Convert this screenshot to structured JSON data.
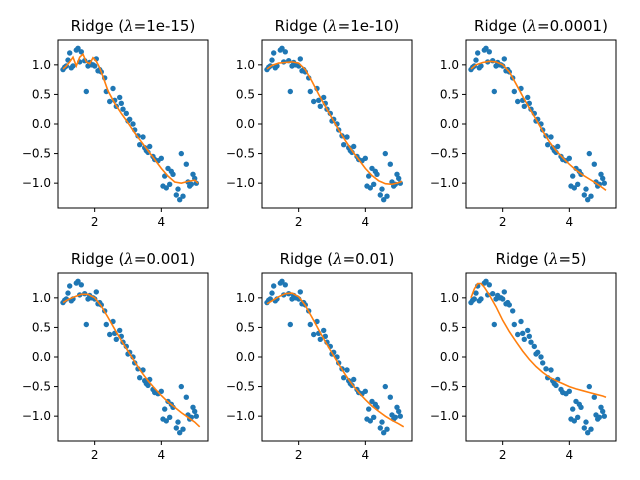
{
  "chart_data": [
    {
      "type": "scatter",
      "title_prefix": "Ridge (",
      "lambda_symbol": "λ",
      "title_value": "=1e-15)",
      "xlim": [
        0.9,
        5.4
      ],
      "ylim": [
        -1.42,
        1.42
      ],
      "x_ticks": [
        2,
        4
      ],
      "y_ticks": [
        1.0,
        0.5,
        0.0,
        -0.5,
        -1.0
      ],
      "x_tick_labels": [
        "2",
        "4"
      ],
      "y_tick_labels": [
        "1.0",
        "0.5",
        "0.0",
        "−0.5",
        "−1.0"
      ],
      "grid": false,
      "fit": {
        "x": [
          1.05,
          1.15,
          1.25,
          1.35,
          1.45,
          1.55,
          1.65,
          1.75,
          1.85,
          1.95,
          2.05,
          2.15,
          2.25,
          2.4,
          2.6,
          2.8,
          3.0,
          3.2,
          3.4,
          3.6,
          3.8,
          4.0,
          4.2,
          4.4,
          4.6,
          4.8,
          5.0,
          5.1
        ],
        "y": [
          0.93,
          0.98,
          1.05,
          1.13,
          0.98,
          1.13,
          1.18,
          1.05,
          1.02,
          1.12,
          1.06,
          0.95,
          0.8,
          0.56,
          0.35,
          0.18,
          0.02,
          -0.15,
          -0.3,
          -0.45,
          -0.6,
          -0.75,
          -0.88,
          -0.98,
          -1.0,
          -0.97,
          -0.95,
          -1.0
        ]
      }
    },
    {
      "type": "scatter",
      "title_prefix": "Ridge (",
      "lambda_symbol": "λ",
      "title_value": "=1e-10)",
      "xlim": [
        0.9,
        5.4
      ],
      "ylim": [
        -1.42,
        1.42
      ],
      "x_ticks": [
        2,
        4
      ],
      "y_ticks": [
        1.0,
        0.5,
        0.0,
        -0.5,
        -1.0
      ],
      "x_tick_labels": [
        "2",
        "4"
      ],
      "y_tick_labels": [
        "1.0",
        "0.5",
        "0.0",
        "−0.5",
        "−1.0"
      ],
      "grid": false,
      "fit": {
        "x": [
          1.05,
          1.2,
          1.4,
          1.6,
          1.8,
          2.0,
          2.2,
          2.4,
          2.6,
          2.8,
          3.0,
          3.2,
          3.4,
          3.6,
          3.8,
          4.0,
          4.2,
          4.4,
          4.6,
          4.8,
          5.0,
          5.1
        ],
        "y": [
          0.93,
          0.99,
          1.03,
          1.04,
          1.05,
          1.03,
          0.92,
          0.72,
          0.5,
          0.3,
          0.1,
          -0.1,
          -0.28,
          -0.45,
          -0.6,
          -0.75,
          -0.87,
          -0.96,
          -1.01,
          -1.02,
          -0.99,
          -0.97
        ]
      }
    },
    {
      "type": "scatter",
      "title_prefix": "Ridge (",
      "lambda_symbol": "λ",
      "title_value": "=0.0001)",
      "xlim": [
        0.9,
        5.4
      ],
      "ylim": [
        -1.42,
        1.42
      ],
      "x_ticks": [
        2,
        4
      ],
      "y_ticks": [
        1.0,
        0.5,
        0.0,
        -0.5,
        -1.0
      ],
      "x_tick_labels": [
        "2",
        "4"
      ],
      "y_tick_labels": [
        "1.0",
        "0.5",
        "0.0",
        "−0.5",
        "−1.0"
      ],
      "grid": false,
      "fit": {
        "x": [
          1.05,
          1.2,
          1.4,
          1.6,
          1.8,
          2.0,
          2.2,
          2.4,
          2.6,
          2.8,
          3.0,
          3.2,
          3.4,
          3.6,
          3.8,
          4.0,
          4.2,
          4.4,
          4.6,
          4.8,
          5.0,
          5.1
        ],
        "y": [
          0.93,
          1.0,
          1.04,
          1.06,
          1.05,
          1.0,
          0.88,
          0.68,
          0.47,
          0.27,
          0.08,
          -0.12,
          -0.3,
          -0.45,
          -0.57,
          -0.68,
          -0.78,
          -0.86,
          -0.93,
          -1.0,
          -1.08,
          -1.12
        ]
      }
    },
    {
      "type": "scatter",
      "title_prefix": "Ridge (",
      "lambda_symbol": "λ",
      "title_value": "=0.001)",
      "xlim": [
        0.9,
        5.4
      ],
      "ylim": [
        -1.42,
        1.42
      ],
      "x_ticks": [
        2,
        4
      ],
      "y_ticks": [
        1.0,
        0.5,
        0.0,
        -0.5,
        -1.0
      ],
      "x_tick_labels": [
        "2",
        "4"
      ],
      "y_tick_labels": [
        "1.0",
        "0.5",
        "0.0",
        "−0.5",
        "−1.0"
      ],
      "grid": false,
      "fit": {
        "x": [
          1.05,
          1.2,
          1.4,
          1.6,
          1.8,
          2.0,
          2.2,
          2.4,
          2.6,
          2.8,
          3.0,
          3.2,
          3.4,
          3.6,
          3.8,
          4.0,
          4.2,
          4.4,
          4.6,
          4.8,
          5.0,
          5.15
        ],
        "y": [
          0.92,
          0.97,
          1.02,
          1.06,
          1.06,
          1.0,
          0.86,
          0.67,
          0.47,
          0.28,
          0.1,
          -0.08,
          -0.25,
          -0.4,
          -0.53,
          -0.65,
          -0.76,
          -0.85,
          -0.94,
          -1.02,
          -1.1,
          -1.18
        ]
      }
    },
    {
      "type": "scatter",
      "title_prefix": "Ridge (",
      "lambda_symbol": "λ",
      "title_value": "=0.01)",
      "xlim": [
        0.9,
        5.4
      ],
      "ylim": [
        -1.42,
        1.42
      ],
      "x_ticks": [
        2,
        4
      ],
      "y_ticks": [
        1.0,
        0.5,
        0.0,
        -0.5,
        -1.0
      ],
      "x_tick_labels": [
        "2",
        "4"
      ],
      "y_tick_labels": [
        "1.0",
        "0.5",
        "0.0",
        "−0.5",
        "−1.0"
      ],
      "grid": false,
      "fit": {
        "x": [
          1.05,
          1.2,
          1.4,
          1.6,
          1.8,
          2.0,
          2.2,
          2.4,
          2.6,
          2.8,
          3.0,
          3.2,
          3.4,
          3.6,
          3.8,
          4.0,
          4.2,
          4.4,
          4.6,
          4.8,
          5.0,
          5.15
        ],
        "y": [
          0.9,
          0.95,
          1.02,
          1.07,
          1.08,
          1.02,
          0.87,
          0.67,
          0.46,
          0.26,
          0.07,
          -0.12,
          -0.3,
          -0.46,
          -0.6,
          -0.72,
          -0.83,
          -0.92,
          -1.0,
          -1.07,
          -1.13,
          -1.18
        ]
      }
    },
    {
      "type": "scatter",
      "title_prefix": "Ridge (",
      "lambda_symbol": "λ",
      "title_value": "=5)",
      "xlim": [
        0.9,
        5.4
      ],
      "ylim": [
        -1.42,
        1.42
      ],
      "x_ticks": [
        2,
        4
      ],
      "y_ticks": [
        1.0,
        0.5,
        0.0,
        -0.5,
        -1.0
      ],
      "x_tick_labels": [
        "2",
        "4"
      ],
      "y_tick_labels": [
        "1.0",
        "0.5",
        "0.0",
        "−0.5",
        "−1.0"
      ],
      "grid": false,
      "fit": {
        "x": [
          1.05,
          1.15,
          1.25,
          1.35,
          1.45,
          1.6,
          1.8,
          2.0,
          2.2,
          2.4,
          2.6,
          2.8,
          3.0,
          3.2,
          3.4,
          3.6,
          3.8,
          4.0,
          4.2,
          4.4,
          4.6,
          4.8,
          5.0,
          5.1
        ],
        "y": [
          1.0,
          1.15,
          1.24,
          1.24,
          1.18,
          1.05,
          0.85,
          0.62,
          0.43,
          0.26,
          0.1,
          -0.04,
          -0.16,
          -0.26,
          -0.34,
          -0.4,
          -0.45,
          -0.5,
          -0.54,
          -0.57,
          -0.6,
          -0.63,
          -0.66,
          -0.68
        ]
      }
    }
  ],
  "samples": {
    "x": [
      1.05,
      1.1,
      1.15,
      1.2,
      1.25,
      1.3,
      1.35,
      1.45,
      1.5,
      1.55,
      1.6,
      1.7,
      1.75,
      1.8,
      1.85,
      1.9,
      1.95,
      2.0,
      2.05,
      2.1,
      2.15,
      2.2,
      2.3,
      2.35,
      2.45,
      2.55,
      2.6,
      2.65,
      2.75,
      2.8,
      2.85,
      2.95,
      3.0,
      3.05,
      3.15,
      3.2,
      3.3,
      3.35,
      3.45,
      3.5,
      3.55,
      3.6,
      3.65,
      3.75,
      3.8,
      3.9,
      4.0,
      4.05,
      4.1,
      4.15,
      4.2,
      4.25,
      4.3,
      4.35,
      4.45,
      4.5,
      4.55,
      4.6,
      4.65,
      4.75,
      4.8,
      4.85,
      4.9,
      4.95,
      5.0,
      5.05
    ],
    "y": [
      0.92,
      0.96,
      0.98,
      1.08,
      1.2,
      0.95,
      0.98,
      1.25,
      1.28,
      1.05,
      1.22,
      1.07,
      0.55,
      0.98,
      1.04,
      1.0,
      1.0,
      0.98,
      1.1,
      0.9,
      0.92,
      0.88,
      0.78,
      0.55,
      0.38,
      0.6,
      0.4,
      0.3,
      0.45,
      0.35,
      0.25,
      0.18,
      0.05,
      0.08,
      0.0,
      -0.1,
      -0.2,
      -0.35,
      -0.22,
      -0.4,
      -0.45,
      -0.48,
      -0.38,
      -0.55,
      -0.6,
      -0.62,
      -0.58,
      -1.05,
      -0.88,
      -1.08,
      -0.75,
      -1.02,
      -0.8,
      -0.85,
      -1.2,
      -1.1,
      -1.28,
      -0.5,
      -1.22,
      -0.68,
      -0.98,
      -1.05,
      -1.02,
      -0.85,
      -0.92,
      -1.0
    ]
  },
  "colors": {
    "points": "#1f77b4",
    "fit": "#ff7f0e",
    "axes": "#000000"
  }
}
